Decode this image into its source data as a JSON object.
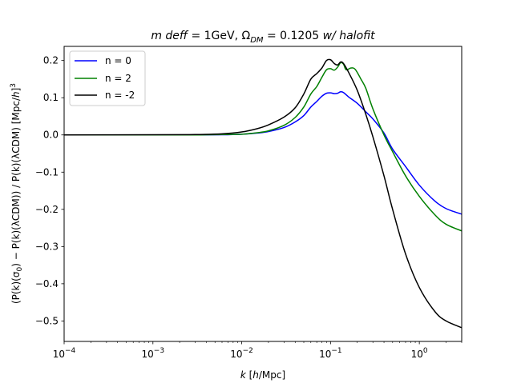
{
  "chart_data": {
    "type": "line",
    "title": "m deff = 1GeV, Ω_DM = 0.1205 w/ halofit",
    "title_parts": {
      "prefix": "m deff",
      "eq1": " = 1GeV, ",
      "omega": "Ω",
      "omega_sub": "DM",
      "eq2": " = 0.1205 ",
      "suffix": "w/ halofit"
    },
    "xlabel": "k  [h/Mpc]",
    "xlabel_parts": {
      "var": "k",
      "pre": "  [",
      "unit_h": "h",
      "post": "/Mpc]"
    },
    "ylabel": "(P(k)(σ0) − P(k)(λCDM)) / P(k)(λCDM)  [Mpc/h]^3",
    "ylabel_parts": {
      "main": "(P(k)(σ",
      "sub0": "0",
      "mid": ") − P(k)(λCDM)) / P(k)(λCDM)  [Mpc/",
      "h": "h",
      "close": "]",
      "sup": "3"
    },
    "x_scale": "log",
    "xlim": [
      0.0001,
      3
    ],
    "ylim": [
      -0.555,
      0.238
    ],
    "x_ticks": [
      {
        "value": 0.0001,
        "base": "10",
        "exp": "−4"
      },
      {
        "value": 0.001,
        "base": "10",
        "exp": "−3"
      },
      {
        "value": 0.01,
        "base": "10",
        "exp": "−2"
      },
      {
        "value": 0.1,
        "base": "10",
        "exp": "−1"
      },
      {
        "value": 1,
        "base": "10",
        "exp": "0"
      }
    ],
    "y_ticks": [
      {
        "value": 0.2,
        "label": "0.2"
      },
      {
        "value": 0.1,
        "label": "0.1"
      },
      {
        "value": 0.0,
        "label": "0.0"
      },
      {
        "value": -0.1,
        "label": "−0.1"
      },
      {
        "value": -0.2,
        "label": "−0.2"
      },
      {
        "value": -0.3,
        "label": "−0.3"
      },
      {
        "value": -0.4,
        "label": "−0.4"
      },
      {
        "value": -0.5,
        "label": "−0.5"
      }
    ],
    "grid": false,
    "legend_position": "top-left",
    "series": [
      {
        "name": "n = 0",
        "color": "#0000ff",
        "points": [
          [
            0.0001,
            0.0
          ],
          [
            0.001,
            0.0
          ],
          [
            0.003,
            0.0
          ],
          [
            0.006,
            0.0005
          ],
          [
            0.01,
            0.002
          ],
          [
            0.015,
            0.005
          ],
          [
            0.02,
            0.009
          ],
          [
            0.03,
            0.02
          ],
          [
            0.04,
            0.035
          ],
          [
            0.05,
            0.052
          ],
          [
            0.06,
            0.075
          ],
          [
            0.07,
            0.09
          ],
          [
            0.08,
            0.104
          ],
          [
            0.09,
            0.112
          ],
          [
            0.1,
            0.113
          ],
          [
            0.11,
            0.111
          ],
          [
            0.12,
            0.112
          ],
          [
            0.13,
            0.116
          ],
          [
            0.14,
            0.114
          ],
          [
            0.16,
            0.102
          ],
          [
            0.2,
            0.085
          ],
          [
            0.25,
            0.062
          ],
          [
            0.3,
            0.043
          ],
          [
            0.4,
            0.005
          ],
          [
            0.5,
            -0.038
          ],
          [
            0.7,
            -0.085
          ],
          [
            1.0,
            -0.135
          ],
          [
            1.5,
            -0.178
          ],
          [
            2.0,
            -0.198
          ],
          [
            3.0,
            -0.213
          ]
        ]
      },
      {
        "name": "n = 2",
        "color": "#008000",
        "points": [
          [
            0.0001,
            0.0
          ],
          [
            0.001,
            0.0
          ],
          [
            0.003,
            0.0
          ],
          [
            0.006,
            0.001
          ],
          [
            0.01,
            0.002
          ],
          [
            0.015,
            0.006
          ],
          [
            0.02,
            0.011
          ],
          [
            0.03,
            0.026
          ],
          [
            0.04,
            0.047
          ],
          [
            0.05,
            0.075
          ],
          [
            0.06,
            0.11
          ],
          [
            0.07,
            0.13
          ],
          [
            0.08,
            0.155
          ],
          [
            0.09,
            0.175
          ],
          [
            0.1,
            0.178
          ],
          [
            0.11,
            0.174
          ],
          [
            0.12,
            0.182
          ],
          [
            0.13,
            0.194
          ],
          [
            0.14,
            0.19
          ],
          [
            0.15,
            0.175
          ],
          [
            0.17,
            0.18
          ],
          [
            0.19,
            0.176
          ],
          [
            0.22,
            0.15
          ],
          [
            0.25,
            0.125
          ],
          [
            0.3,
            0.07
          ],
          [
            0.4,
            0.0
          ],
          [
            0.5,
            -0.045
          ],
          [
            0.7,
            -0.11
          ],
          [
            1.0,
            -0.165
          ],
          [
            1.5,
            -0.215
          ],
          [
            2.0,
            -0.24
          ],
          [
            3.0,
            -0.258
          ]
        ]
      },
      {
        "name": "n = -2",
        "color": "#000000",
        "points": [
          [
            0.0001,
            0.0
          ],
          [
            0.001,
            0.0005
          ],
          [
            0.003,
            0.001
          ],
          [
            0.006,
            0.003
          ],
          [
            0.01,
            0.008
          ],
          [
            0.015,
            0.017
          ],
          [
            0.02,
            0.027
          ],
          [
            0.03,
            0.048
          ],
          [
            0.04,
            0.073
          ],
          [
            0.05,
            0.11
          ],
          [
            0.06,
            0.15
          ],
          [
            0.07,
            0.165
          ],
          [
            0.08,
            0.18
          ],
          [
            0.09,
            0.2
          ],
          [
            0.1,
            0.202
          ],
          [
            0.11,
            0.192
          ],
          [
            0.12,
            0.188
          ],
          [
            0.13,
            0.196
          ],
          [
            0.14,
            0.192
          ],
          [
            0.16,
            0.168
          ],
          [
            0.2,
            0.12
          ],
          [
            0.25,
            0.055
          ],
          [
            0.3,
            -0.005
          ],
          [
            0.4,
            -0.11
          ],
          [
            0.5,
            -0.2
          ],
          [
            0.7,
            -0.32
          ],
          [
            1.0,
            -0.41
          ],
          [
            1.5,
            -0.475
          ],
          [
            2.0,
            -0.5
          ],
          [
            3.0,
            -0.518
          ]
        ]
      }
    ]
  }
}
